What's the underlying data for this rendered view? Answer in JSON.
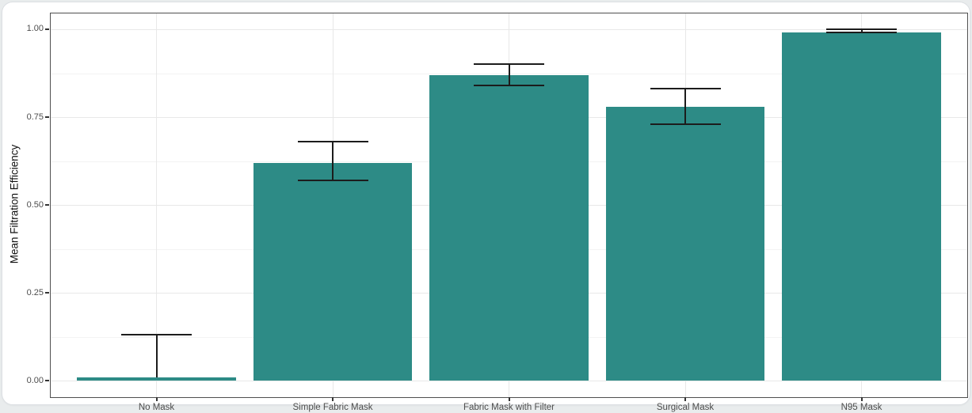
{
  "page": {
    "background_color": "#e9eced",
    "card_background": "#ffffff",
    "card_border_color": "#dcdfe3"
  },
  "chart_data": {
    "type": "bar",
    "title": "",
    "xlabel": "",
    "ylabel": "Mean Filtration Efficiency",
    "categories": [
      "No Mask",
      "Simple Fabric Mask",
      "Fabric Mask with Filter",
      "Surgical Mask",
      "N95 Mask"
    ],
    "values": [
      0.01,
      0.62,
      0.87,
      0.78,
      0.99
    ],
    "error_high": [
      0.13,
      0.68,
      0.9,
      0.83,
      1.0
    ],
    "error_low": [
      0.01,
      0.57,
      0.84,
      0.73,
      0.99
    ],
    "error_low_cap_visible": [
      false,
      true,
      true,
      true,
      true
    ],
    "y_ticks": [
      0.0,
      0.25,
      0.5,
      0.75,
      1.0
    ],
    "y_tick_labels": [
      "0.00",
      "0.25",
      "0.50",
      "0.75",
      "1.00"
    ],
    "y_minor_ticks": [
      0.125,
      0.375,
      0.625,
      0.875
    ],
    "ylim": [
      -0.047,
      1.045
    ],
    "grid": true,
    "legend_position": "none",
    "bar_color": "#2d8b86",
    "errorbar_color": "#1c1c1c",
    "grid_major_color": "#e8e8e8",
    "grid_minor_color": "#f3f3f3",
    "panel_border_color": "#4f4f4f",
    "axis_text_color": "#4d4d4d",
    "axis_title_color": "#111111",
    "tick_mark_color": "#333333"
  }
}
